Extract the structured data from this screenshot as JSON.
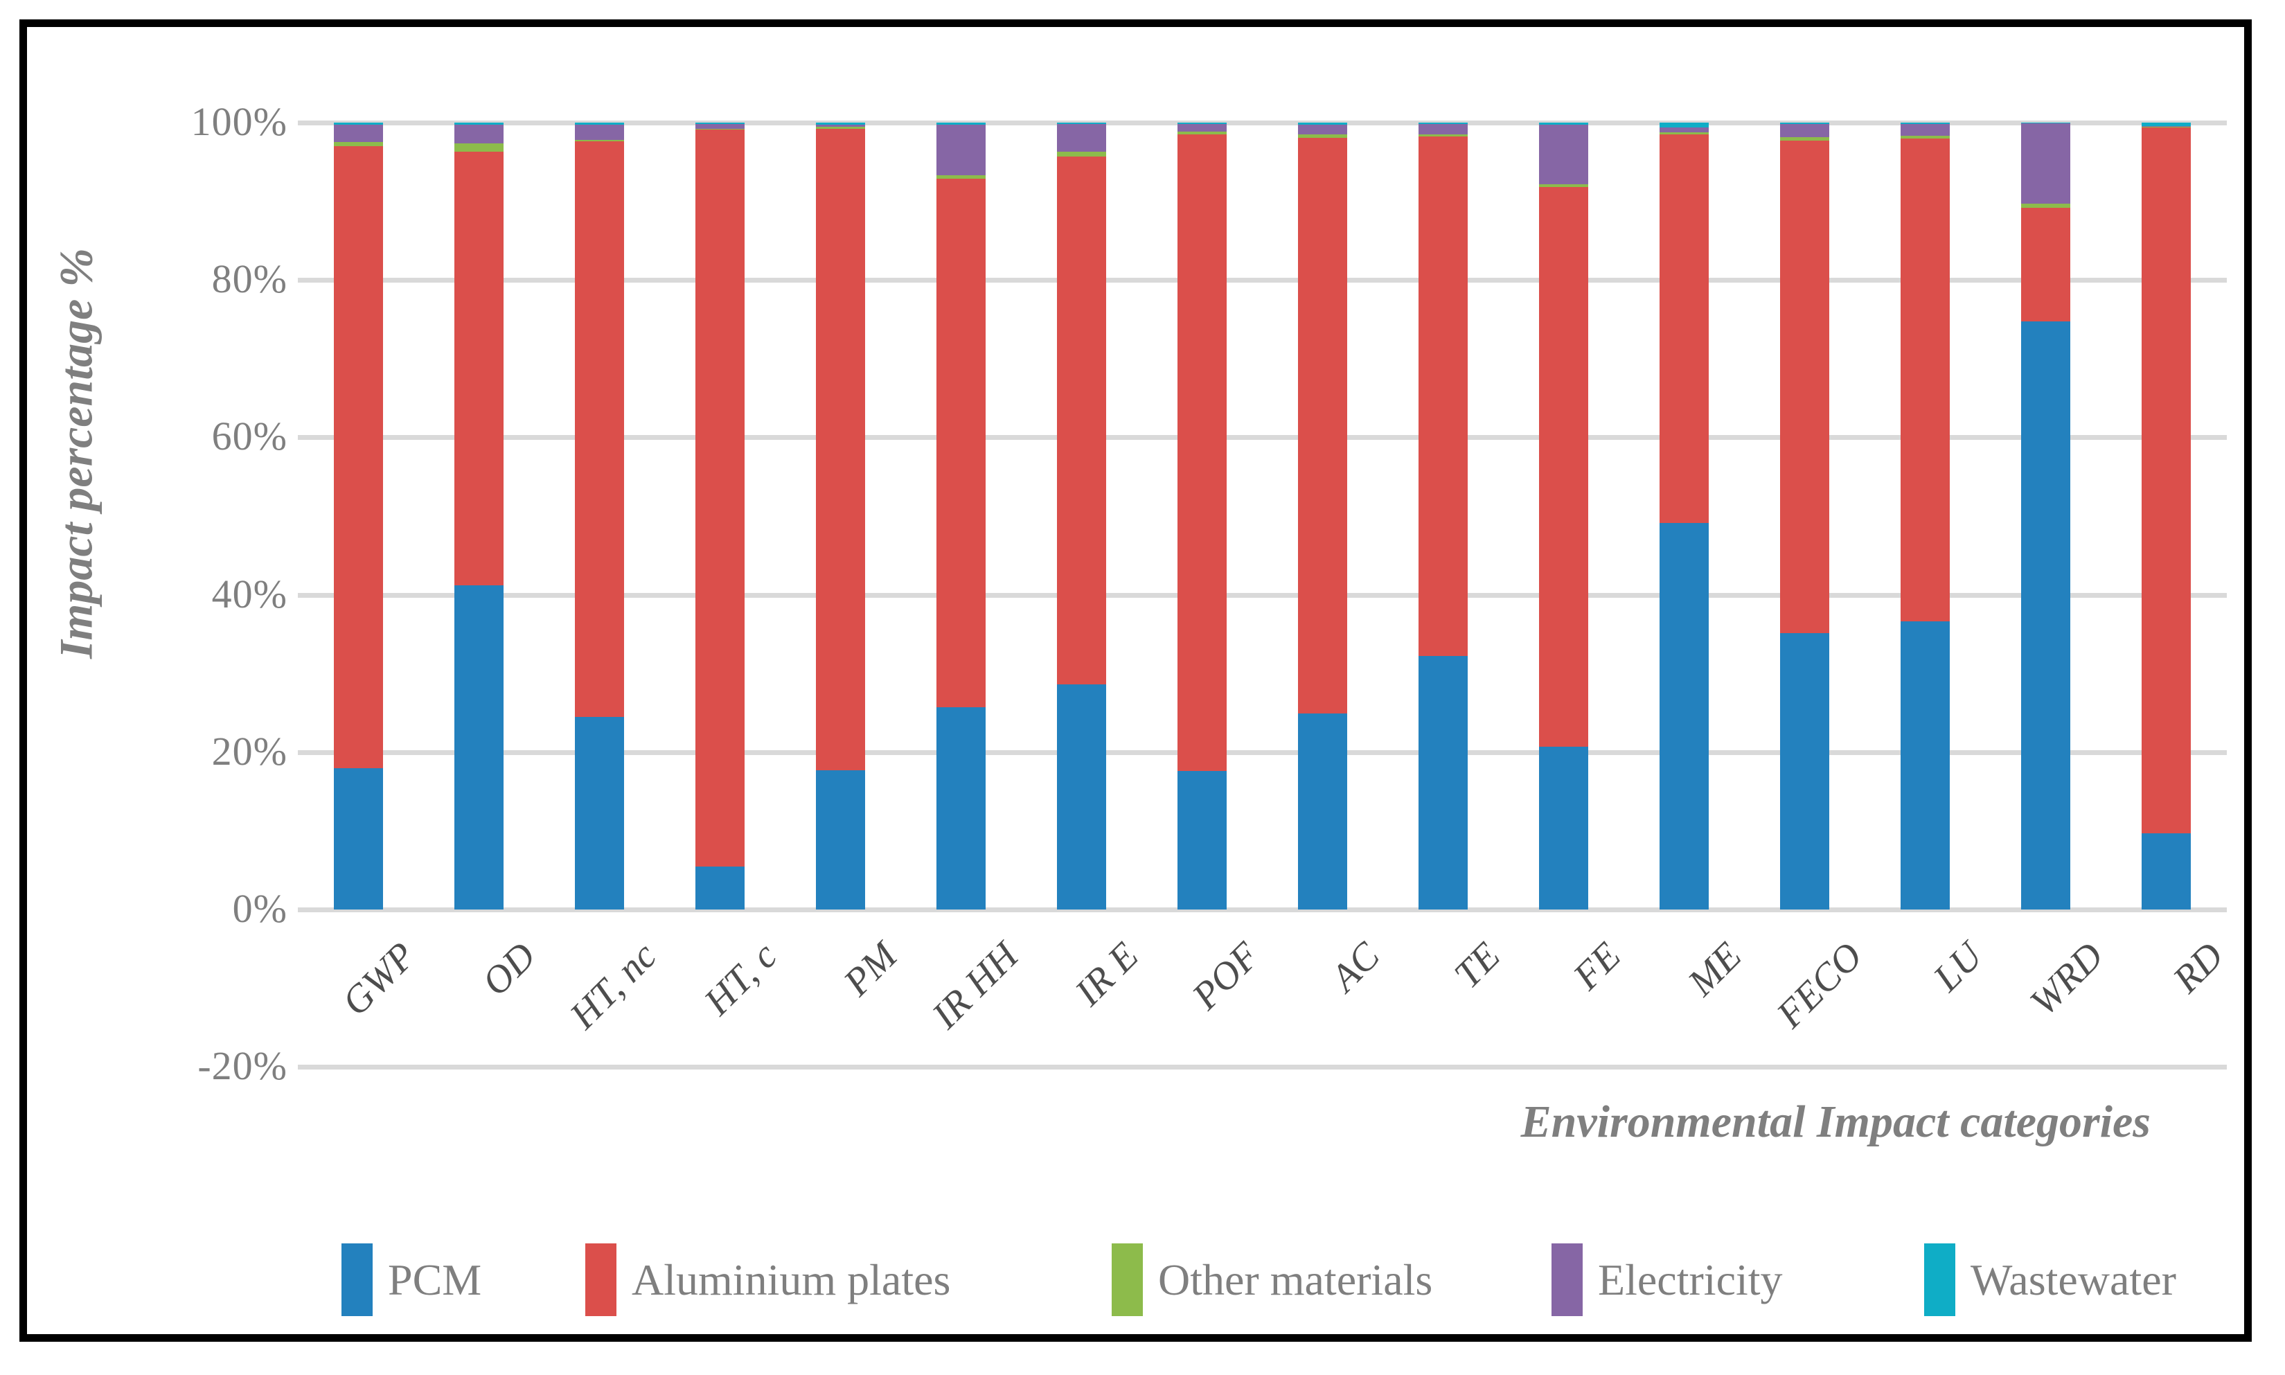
{
  "y_axis": {
    "title": "Impact percentage %",
    "tick_labels": [
      "100%",
      "80%",
      "60%",
      "40%",
      "20%",
      "0%",
      "-20%"
    ],
    "tick_values": [
      100,
      80,
      60,
      40,
      20,
      0,
      -20
    ]
  },
  "x_axis": {
    "title": "Environmental Impact categories"
  },
  "chart_data": {
    "type": "bar",
    "stacked": true,
    "grid": true,
    "legend_position": "bottom",
    "ylim": [
      -20,
      100
    ],
    "ylabel": "Impact percentage %",
    "xlabel": "Environmental Impact categories",
    "categories": [
      "GWP",
      "OD",
      "HT, nc",
      "HT, c",
      "PM",
      "IR HH",
      "IR E",
      "POF",
      "AC",
      "TE",
      "FE",
      "ME",
      "FECO",
      "LU",
      "WRD",
      "RD"
    ],
    "series": [
      {
        "name": "PCM",
        "color": "#2381BE",
        "values": [
          18.0,
          41.2,
          24.5,
          5.5,
          17.7,
          25.7,
          28.6,
          17.6,
          24.9,
          32.2,
          20.7,
          49.1,
          35.1,
          36.6,
          74.7,
          9.7
        ]
      },
      {
        "name": "Aluminium plates",
        "color": "#DB4F4B",
        "values": [
          79.0,
          55.1,
          73.1,
          93.65,
          81.55,
          67.15,
          67.1,
          80.9,
          73.2,
          66.0,
          71.1,
          49.4,
          62.6,
          61.35,
          14.5,
          89.65
        ]
      },
      {
        "name": "Other materials",
        "color": "#8DBB4B",
        "values": [
          0.5,
          1.05,
          0.2,
          0.1,
          0.25,
          0.5,
          0.6,
          0.4,
          0.4,
          0.3,
          0.4,
          0.3,
          0.45,
          0.4,
          0.5,
          0.15
        ]
      },
      {
        "name": "Electricity",
        "color": "#8666A5",
        "values": [
          2.25,
          2.4,
          1.9,
          0.6,
          0.25,
          6.4,
          3.5,
          0.9,
          1.2,
          1.3,
          7.5,
          0.6,
          1.7,
          1.5,
          10.2,
          0.1
        ]
      },
      {
        "name": "Wastewater",
        "color": "#0FADC6",
        "values": [
          0.25,
          0.25,
          0.3,
          0.15,
          0.25,
          0.25,
          0.2,
          0.2,
          0.3,
          0.2,
          0.3,
          0.6,
          0.15,
          0.15,
          0.1,
          0.4
        ]
      }
    ]
  },
  "legend": {
    "items": [
      "PCM",
      "Aluminium plates",
      "Other materials",
      "Electricity",
      "Wastewater"
    ]
  },
  "colors": {
    "gridline": "#D9D9D9",
    "tick_text": "#7F7F7F",
    "category_text": "#4d4d4d",
    "axis_title_text": "#7F7F7F",
    "frame_border": "#000000"
  }
}
